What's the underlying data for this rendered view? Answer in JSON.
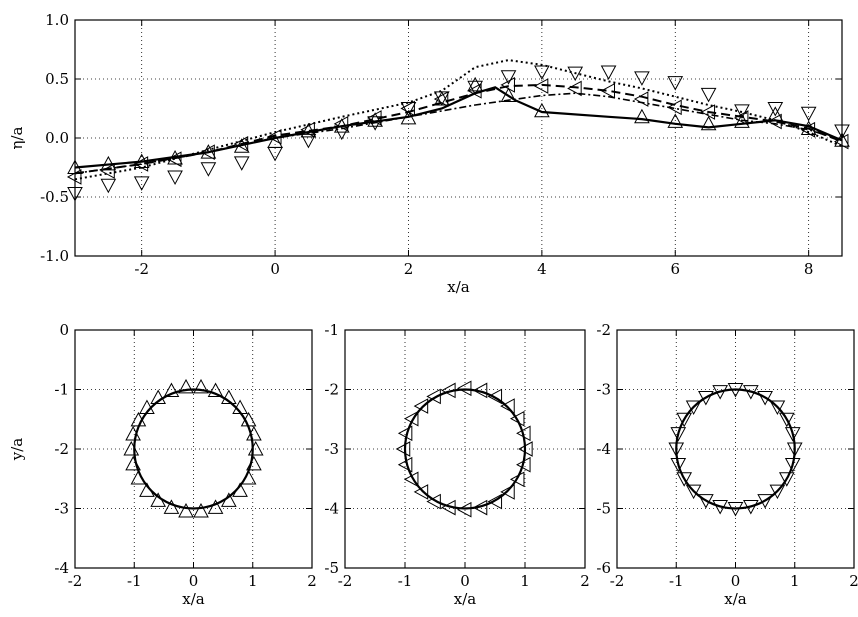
{
  "chart_data": [
    {
      "type": "line",
      "xlabel": "x/a",
      "ylabel": "η/a",
      "xlim": [
        -3,
        8.5
      ],
      "ylim": [
        -1.0,
        1.0
      ],
      "xticks": [
        -2,
        0,
        2,
        4,
        6,
        8
      ],
      "yticks": [
        -1.0,
        -0.5,
        0.0,
        0.5,
        1.0
      ],
      "ytick_labels": [
        "-1.0",
        "-0.5",
        "0.0",
        "0.5",
        "1.0"
      ],
      "grid": true,
      "series": [
        {
          "style": "solid",
          "x": [
            -3,
            -2,
            -1,
            0,
            1,
            2,
            2.5,
            3.0,
            3.3,
            3.6,
            4,
            5,
            5.5,
            6,
            6.5,
            7,
            7.5,
            8,
            8.5
          ],
          "y": [
            -0.25,
            -0.2,
            -0.12,
            0.0,
            0.1,
            0.18,
            0.25,
            0.38,
            0.43,
            0.32,
            0.22,
            0.18,
            0.16,
            0.12,
            0.09,
            0.12,
            0.15,
            0.1,
            -0.02
          ]
        },
        {
          "style": "dashed",
          "x": [
            -3,
            -2,
            -1,
            0,
            1,
            2,
            2.5,
            3.0,
            3.5,
            4,
            4.5,
            5,
            5.5,
            6,
            6.5,
            7,
            7.5,
            8,
            8.5
          ],
          "y": [
            -0.3,
            -0.22,
            -0.12,
            0.02,
            0.1,
            0.22,
            0.3,
            0.38,
            0.44,
            0.45,
            0.43,
            0.4,
            0.35,
            0.28,
            0.22,
            0.18,
            0.14,
            0.08,
            -0.03
          ]
        },
        {
          "style": "dotted",
          "x": [
            -3,
            -2,
            -1,
            0,
            1,
            2,
            2.5,
            3,
            3.5,
            4,
            4.5,
            5,
            5.5,
            6,
            6.5,
            7,
            7.5,
            8,
            8.5
          ],
          "y": [
            -0.35,
            -0.25,
            -0.1,
            0.05,
            0.18,
            0.3,
            0.4,
            0.6,
            0.66,
            0.62,
            0.55,
            0.48,
            0.42,
            0.35,
            0.28,
            0.22,
            0.15,
            0.05,
            -0.07
          ]
        },
        {
          "style": "dashdot",
          "x": [
            -3,
            -2,
            -1,
            0,
            1,
            2,
            3,
            3.5,
            4,
            4.5,
            5,
            5.5,
            6,
            6.5,
            7,
            7.5,
            8,
            8.5
          ],
          "y": [
            -0.3,
            -0.22,
            -0.12,
            0.0,
            0.08,
            0.18,
            0.28,
            0.32,
            0.36,
            0.38,
            0.35,
            0.3,
            0.25,
            0.2,
            0.15,
            0.12,
            0.07,
            -0.02
          ]
        }
      ],
      "markers": [
        {
          "shape": "triangle-up",
          "x": [
            -3,
            -2.5,
            -2,
            -1.5,
            -1,
            -0.5,
            0,
            0.5,
            1,
            1.5,
            2,
            2.5,
            3,
            3.5,
            4,
            5.5,
            6,
            6.5,
            7,
            7.5,
            8,
            8.5
          ],
          "y": [
            -0.25,
            -0.22,
            -0.2,
            -0.17,
            -0.12,
            -0.07,
            -0.03,
            0.06,
            0.1,
            0.15,
            0.17,
            0.33,
            0.45,
            0.36,
            0.23,
            0.18,
            0.14,
            0.12,
            0.14,
            0.2,
            0.08,
            -0.02
          ]
        },
        {
          "shape": "triangle-down",
          "x": [
            -3,
            -2.5,
            -2,
            -1.5,
            -1,
            -0.5,
            0,
            0.5,
            1,
            1.5,
            2,
            2.5,
            3,
            3.5,
            4,
            4.5,
            5,
            5.5,
            6,
            6.5,
            7,
            7.5,
            8,
            8.5
          ],
          "y": [
            -0.47,
            -0.4,
            -0.38,
            -0.33,
            -0.26,
            -0.21,
            -0.13,
            -0.02,
            0.05,
            0.13,
            0.25,
            0.34,
            0.43,
            0.52,
            0.56,
            0.55,
            0.56,
            0.51,
            0.47,
            0.37,
            0.23,
            0.25,
            0.21,
            0.06
          ]
        },
        {
          "shape": "triangle-left",
          "x": [
            -3,
            -2.5,
            -2,
            -1.5,
            -1,
            -0.5,
            0,
            0.5,
            1,
            1.5,
            2,
            2.5,
            3,
            3.5,
            4,
            4.5,
            5,
            5.5,
            6,
            6.5,
            7,
            7.5,
            8,
            8.5
          ],
          "y": [
            -0.33,
            -0.28,
            -0.22,
            -0.18,
            -0.12,
            -0.05,
            0.01,
            0.07,
            0.12,
            0.17,
            0.25,
            0.33,
            0.4,
            0.45,
            0.44,
            0.42,
            0.4,
            0.33,
            0.26,
            0.22,
            0.17,
            0.14,
            0.07,
            -0.03
          ]
        }
      ]
    },
    {
      "type": "scatter",
      "xlabel": "x/a",
      "ylabel": "y/a",
      "xlim": [
        -2,
        2
      ],
      "ylim": [
        -4,
        0
      ],
      "xticks": [
        -2,
        -1,
        0,
        1,
        2
      ],
      "yticks": [
        -4,
        -3,
        -2,
        -1,
        0
      ],
      "grid": true,
      "circle": {
        "cx": 0,
        "cy": -2,
        "r": 1.0
      },
      "markers": {
        "shape": "triangle-up",
        "cx": 0,
        "cy": -2,
        "r": 1.05,
        "count": 26
      }
    },
    {
      "type": "scatter",
      "xlabel": "x/a",
      "ylabel": "",
      "xlim": [
        -2,
        2
      ],
      "ylim": [
        -5,
        -1
      ],
      "xticks": [
        -2,
        -1,
        0,
        1,
        2
      ],
      "yticks": [
        -5,
        -4,
        -3,
        -2,
        -1
      ],
      "grid": true,
      "circle": {
        "cx": 0,
        "cy": -3,
        "r": 1.0
      },
      "markers": {
        "shape": "triangle-left",
        "cx": 0,
        "cy": -3,
        "r": 1.02,
        "count": 24
      }
    },
    {
      "type": "scatter",
      "xlabel": "x/a",
      "ylabel": "",
      "xlim": [
        -2,
        2
      ],
      "ylim": [
        -6,
        -2
      ],
      "xticks": [
        -2,
        -1,
        0,
        1,
        2
      ],
      "yticks": [
        -6,
        -5,
        -4,
        -3,
        -2
      ],
      "grid": true,
      "circle": {
        "cx": 0,
        "cy": -4,
        "r": 1.0
      },
      "markers": {
        "shape": "triangle-down",
        "cx": 0,
        "cy": -4,
        "r": 1.0,
        "count": 24
      }
    }
  ]
}
